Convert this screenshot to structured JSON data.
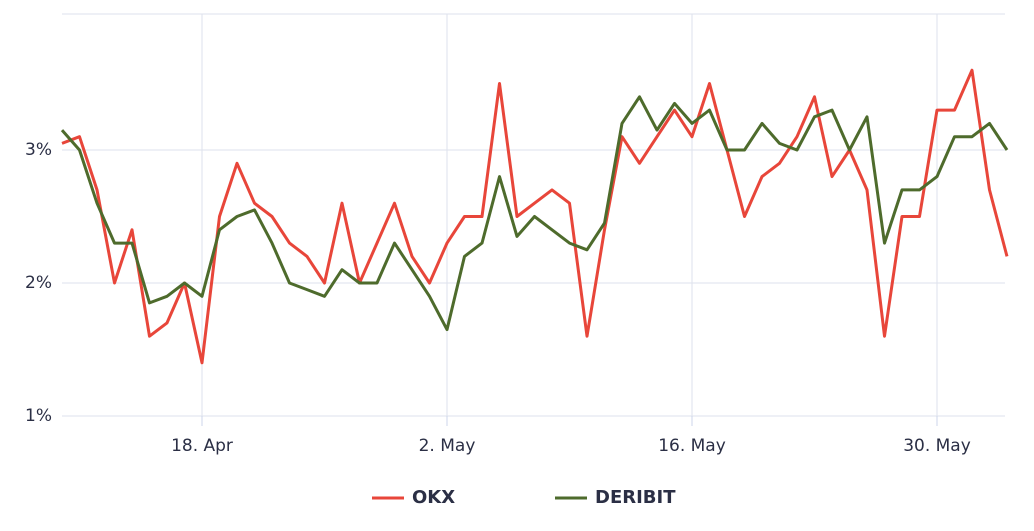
{
  "chart_data": {
    "type": "line",
    "x": [
      "10. Apr",
      "11. Apr",
      "12. Apr",
      "13. Apr",
      "14. Apr",
      "15. Apr",
      "16. Apr",
      "17. Apr",
      "18. Apr",
      "19. Apr",
      "20. Apr",
      "21. Apr",
      "22. Apr",
      "23. Apr",
      "24. Apr",
      "25. Apr",
      "26. Apr",
      "27. Apr",
      "28. Apr",
      "29. Apr",
      "30. Apr",
      "1. May",
      "2. May",
      "3. May",
      "4. May",
      "5. May",
      "6. May",
      "7. May",
      "8. May",
      "9. May",
      "10. May",
      "11. May",
      "12. May",
      "13. May",
      "14. May",
      "15. May",
      "16. May",
      "17. May",
      "18. May",
      "19. May",
      "20. May",
      "21. May",
      "22. May",
      "23. May",
      "24. May",
      "25. May",
      "26. May",
      "27. May",
      "28. May",
      "29. May",
      "30. May",
      "31. May",
      "1. Jun",
      "2. Jun",
      "3. Jun"
    ],
    "series": [
      {
        "name": "OKX",
        "color": "#e8463a",
        "values": [
          3.05,
          3.1,
          2.7,
          2.0,
          2.4,
          1.6,
          1.7,
          2.0,
          1.4,
          2.5,
          2.9,
          2.6,
          2.5,
          2.3,
          2.2,
          2.0,
          2.6,
          2.0,
          2.3,
          2.6,
          2.2,
          2.0,
          2.3,
          2.5,
          2.5,
          3.5,
          2.5,
          2.6,
          2.7,
          2.6,
          1.6,
          2.4,
          3.1,
          2.9,
          3.1,
          3.3,
          3.1,
          3.5,
          3.0,
          2.5,
          2.8,
          2.9,
          3.1,
          3.4,
          2.8,
          3.0,
          2.7,
          1.6,
          2.5,
          2.5,
          3.3,
          3.3,
          3.6,
          2.7,
          2.2
        ]
      },
      {
        "name": "DERIBIT",
        "color": "#4e6b2c",
        "values": [
          3.15,
          3.0,
          2.6,
          2.3,
          2.3,
          1.85,
          1.9,
          2.0,
          1.9,
          2.4,
          2.5,
          2.55,
          2.3,
          2.0,
          1.95,
          1.9,
          2.1,
          2.0,
          2.0,
          2.3,
          2.1,
          1.9,
          1.65,
          2.2,
          2.3,
          2.8,
          2.35,
          2.5,
          2.4,
          2.3,
          2.25,
          2.45,
          3.2,
          3.4,
          3.15,
          3.35,
          3.2,
          3.3,
          3.0,
          3.0,
          3.2,
          3.05,
          3.0,
          3.25,
          3.3,
          3.0,
          3.25,
          2.3,
          2.7,
          2.7,
          2.8,
          3.1,
          3.1,
          3.2,
          3.0
        ]
      }
    ],
    "xticks": [
      "18. Apr",
      "2. May",
      "16. May",
      "30. May"
    ],
    "ylim": [
      1,
      4
    ],
    "yticks": [
      {
        "value": 1,
        "label": "1%"
      },
      {
        "value": 2,
        "label": "2%"
      },
      {
        "value": 3,
        "label": "3%"
      }
    ],
    "grid": true,
    "legend": "bottom"
  }
}
